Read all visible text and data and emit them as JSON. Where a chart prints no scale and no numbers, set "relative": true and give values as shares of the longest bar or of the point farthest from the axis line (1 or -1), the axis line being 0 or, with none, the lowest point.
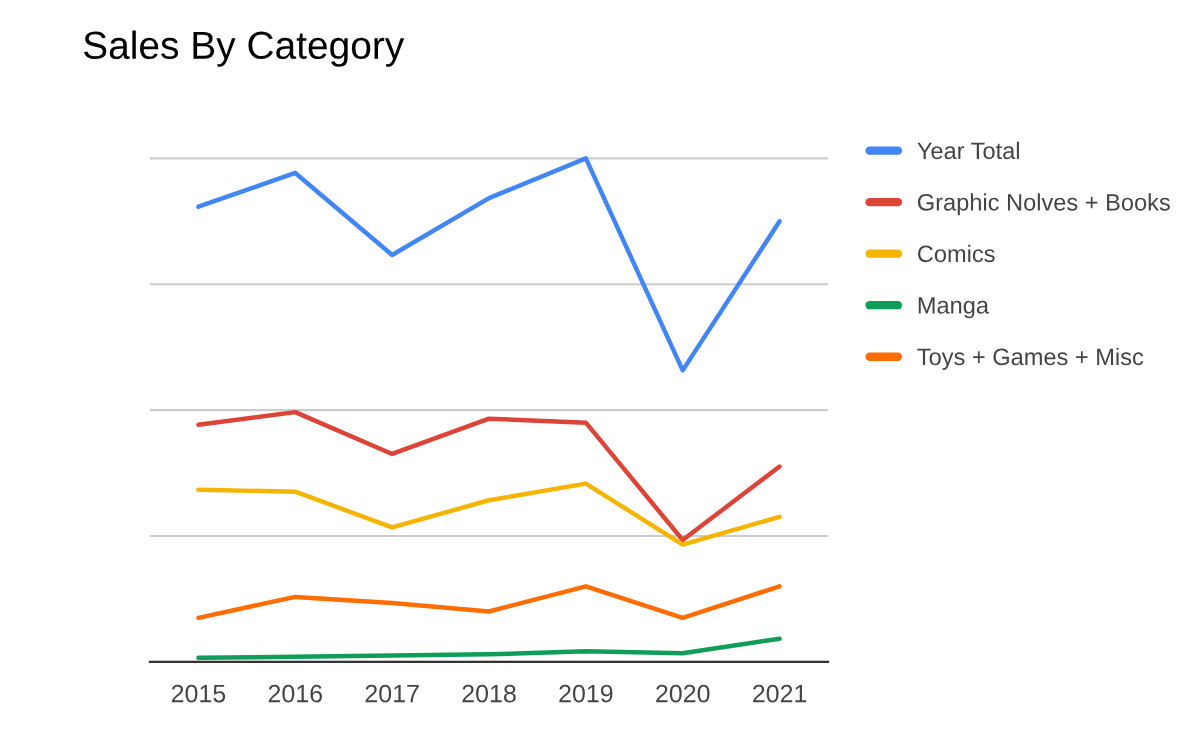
{
  "chart_data": {
    "type": "line",
    "title": "Sales By Category",
    "relative": true,
    "grid": "y",
    "legend": "right",
    "marker": "none",
    "categories": [
      "2015",
      "2016",
      "2017",
      "2018",
      "2019",
      "2020",
      "2021"
    ],
    "series": [
      {
        "name": "Year Total",
        "color": "#4285f4",
        "values": [
          0.904,
          0.971,
          0.808,
          0.921,
          1.0,
          0.579,
          0.875
        ]
      },
      {
        "name": "Graphic Nolves + Books",
        "color": "#db4437",
        "values": [
          0.471,
          0.496,
          0.413,
          0.483,
          0.475,
          0.242,
          0.388
        ]
      },
      {
        "name": "Comics",
        "color": "#f4b400",
        "values": [
          0.342,
          0.338,
          0.267,
          0.321,
          0.354,
          0.233,
          0.288
        ]
      },
      {
        "name": "Manga",
        "color": "#0f9d58",
        "values": [
          0.008,
          0.01,
          0.0125,
          0.015,
          0.021,
          0.017,
          0.046
        ]
      },
      {
        "name": "Toys + Games + Misc",
        "color": "#ff6d00",
        "values": [
          0.0875,
          0.129,
          0.117,
          0.1,
          0.15,
          0.0875,
          0.15
        ]
      }
    ]
  }
}
